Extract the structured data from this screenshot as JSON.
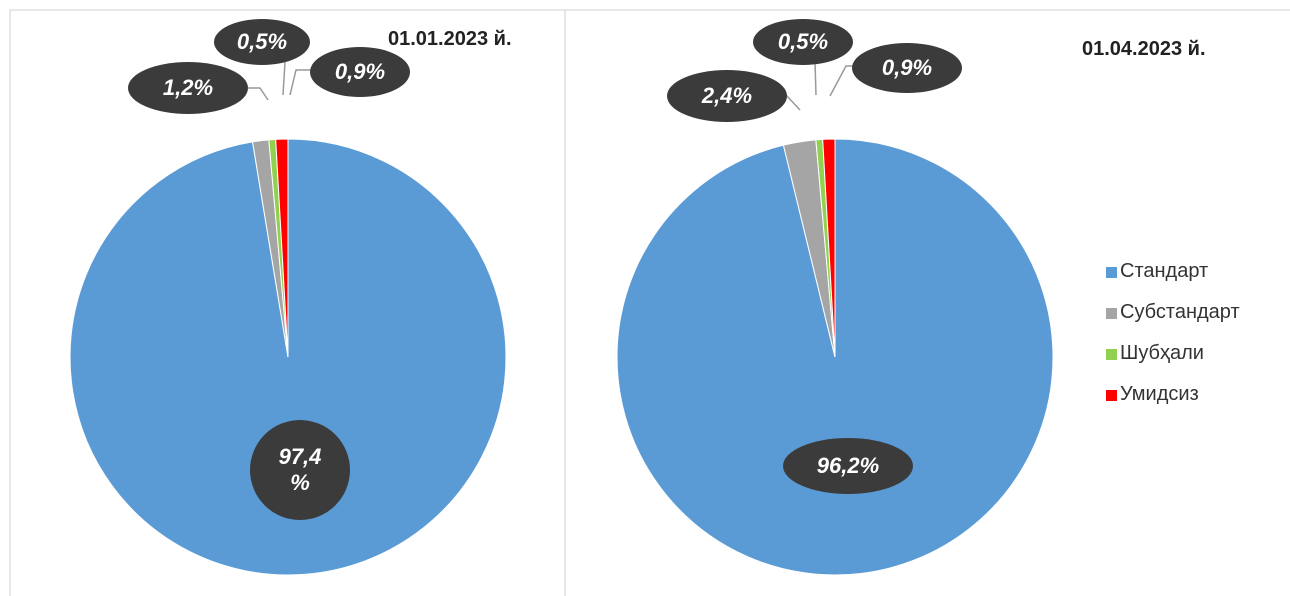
{
  "chart_data": [
    {
      "type": "pie",
      "title": "01.01.2023 й.",
      "categories": [
        "Стандарт",
        "Субстандарт",
        "Шубҳали",
        "Умидсиз"
      ],
      "values": [
        97.4,
        1.2,
        0.5,
        0.9
      ],
      "value_labels": [
        "97,4 %",
        "1,2%",
        "0,5%",
        "0,9%"
      ],
      "colors": [
        "#5b9bd5",
        "#a5a5a5",
        "#92d050",
        "#ff0000"
      ]
    },
    {
      "type": "pie",
      "title": "01.04.2023 й.",
      "categories": [
        "Стандарт",
        "Субстандарт",
        "Шубҳали",
        "Умидсиз"
      ],
      "values": [
        96.2,
        2.4,
        0.5,
        0.9
      ],
      "value_labels": [
        "96,2%",
        "2,4%",
        "0,5%",
        "0,9%"
      ],
      "colors": [
        "#5b9bd5",
        "#a5a5a5",
        "#92d050",
        "#ff0000"
      ],
      "legend": "right"
    }
  ]
}
